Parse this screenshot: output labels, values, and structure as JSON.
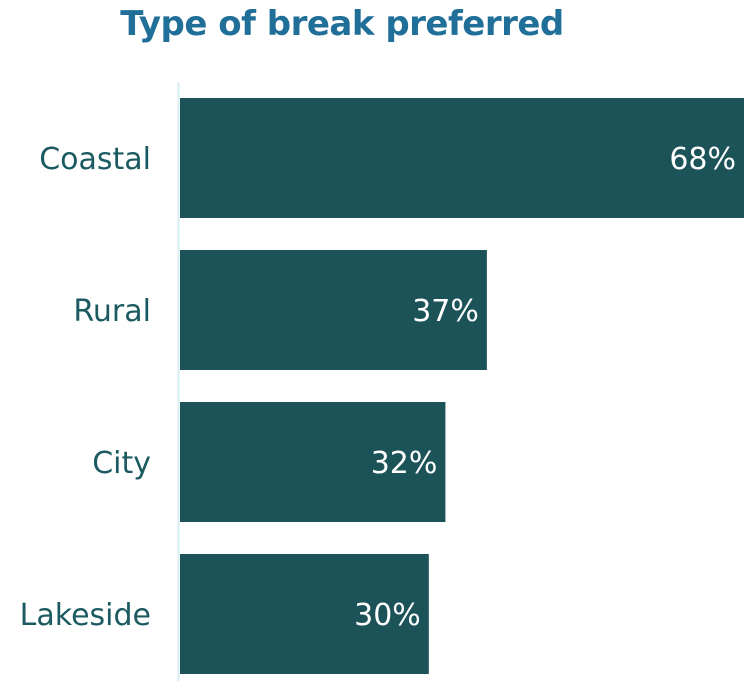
{
  "chart_data": {
    "type": "bar",
    "orientation": "horizontal",
    "title": "Type of break preferred",
    "categories": [
      "Coastal",
      "Rural",
      "City",
      "Lakeside"
    ],
    "values": [
      68,
      37,
      32,
      30
    ],
    "value_labels": [
      "68%",
      "37%",
      "32%",
      "30%"
    ],
    "xlim": [
      0,
      68
    ],
    "bar_color": "#1b5359",
    "axis_color": "#d6eef2",
    "label_color": "#1b5a60",
    "title_color": "#1f6f99",
    "grid": false,
    "legend": "none"
  }
}
